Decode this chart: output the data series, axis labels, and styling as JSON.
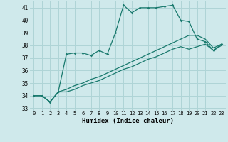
{
  "xlabel": "Humidex (Indice chaleur)",
  "bg_color": "#cfe9eb",
  "grid_color": "#aed4d6",
  "line_color": "#1a7a6e",
  "xlim": [
    -0.5,
    23.5
  ],
  "ylim": [
    32.8,
    41.5
  ],
  "yticks": [
    33,
    34,
    35,
    36,
    37,
    38,
    39,
    40,
    41
  ],
  "xticks": [
    0,
    1,
    2,
    3,
    4,
    5,
    6,
    7,
    8,
    9,
    10,
    11,
    12,
    13,
    14,
    15,
    16,
    17,
    18,
    19,
    20,
    21,
    22,
    23
  ],
  "series": [
    [
      34.0,
      34.0,
      33.5,
      34.3,
      37.3,
      37.4,
      37.4,
      37.2,
      37.6,
      37.3,
      39.0,
      41.2,
      40.6,
      41.0,
      41.0,
      41.0,
      41.1,
      41.2,
      40.0,
      39.9,
      38.5,
      38.3,
      37.6,
      38.1
    ],
    [
      34.0,
      34.0,
      33.5,
      34.3,
      34.5,
      34.8,
      35.0,
      35.3,
      35.5,
      35.8,
      36.1,
      36.4,
      36.7,
      37.0,
      37.3,
      37.6,
      37.9,
      38.2,
      38.5,
      38.8,
      38.8,
      38.5,
      37.8,
      38.1
    ],
    [
      34.0,
      34.0,
      33.5,
      34.3,
      34.3,
      34.5,
      34.8,
      35.0,
      35.2,
      35.5,
      35.8,
      36.1,
      36.3,
      36.6,
      36.9,
      37.1,
      37.4,
      37.7,
      37.9,
      37.7,
      37.9,
      38.1,
      37.6,
      38.0
    ]
  ]
}
